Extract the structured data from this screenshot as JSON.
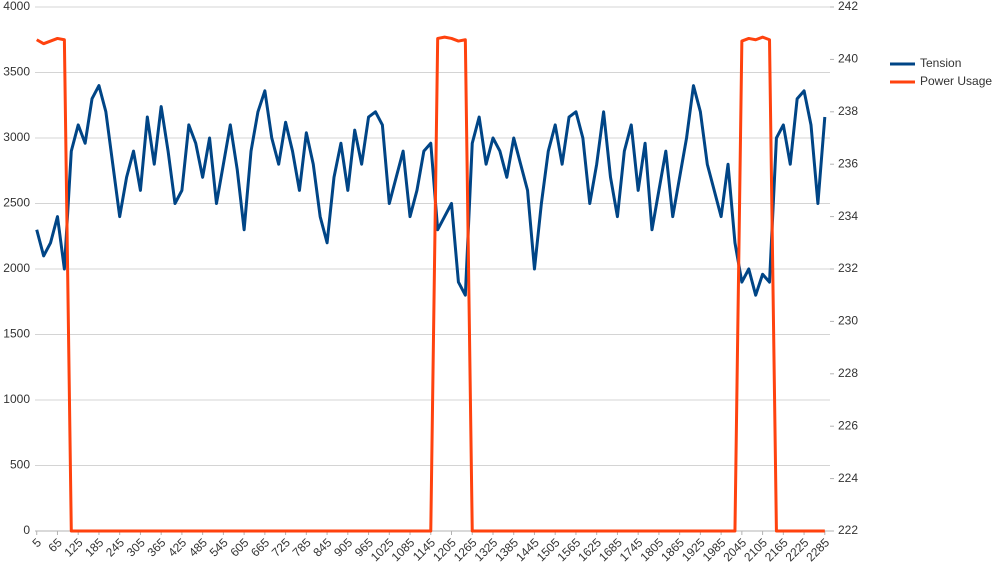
{
  "chart_data": {
    "type": "line",
    "x": [
      5,
      25,
      45,
      65,
      85,
      105,
      125,
      145,
      165,
      185,
      205,
      225,
      245,
      265,
      285,
      305,
      325,
      345,
      365,
      385,
      405,
      425,
      445,
      465,
      485,
      505,
      525,
      545,
      565,
      585,
      605,
      625,
      645,
      665,
      685,
      705,
      725,
      745,
      765,
      785,
      805,
      825,
      845,
      865,
      885,
      905,
      925,
      945,
      965,
      985,
      1005,
      1025,
      1045,
      1065,
      1085,
      1105,
      1125,
      1145,
      1165,
      1185,
      1205,
      1225,
      1245,
      1265,
      1285,
      1305,
      1325,
      1345,
      1365,
      1385,
      1405,
      1425,
      1445,
      1465,
      1485,
      1505,
      1525,
      1545,
      1565,
      1585,
      1605,
      1625,
      1645,
      1665,
      1685,
      1705,
      1725,
      1745,
      1765,
      1785,
      1805,
      1825,
      1845,
      1865,
      1885,
      1905,
      1925,
      1945,
      1965,
      1985,
      2005,
      2025,
      2045,
      2065,
      2085,
      2105,
      2125,
      2145,
      2165,
      2185,
      2205,
      2225,
      2245,
      2265,
      2285
    ],
    "series": [
      {
        "name": "Tension",
        "color": "#004586",
        "axis": "y2",
        "values": [
          233.5,
          232.5,
          233.0,
          234.0,
          232.0,
          236.5,
          237.5,
          236.8,
          238.5,
          239.0,
          238.0,
          236.0,
          234.0,
          235.5,
          236.5,
          235.0,
          237.8,
          236.0,
          238.2,
          236.5,
          234.5,
          235.0,
          237.5,
          236.8,
          235.5,
          237.0,
          234.5,
          236.0,
          237.5,
          235.8,
          233.5,
          236.5,
          238.0,
          238.8,
          237.0,
          236.0,
          237.6,
          236.5,
          235.0,
          237.2,
          236.0,
          234.0,
          233.0,
          235.5,
          236.8,
          235.0,
          237.3,
          236.0,
          237.8,
          238.0,
          237.5,
          234.5,
          235.5,
          236.5,
          234.0,
          235.0,
          236.5,
          236.8,
          233.5,
          234.0,
          234.5,
          231.5,
          231.0,
          236.8,
          237.8,
          236.0,
          237.0,
          236.5,
          235.5,
          237.0,
          236.0,
          235.0,
          232.0,
          234.5,
          236.5,
          237.5,
          236.0,
          237.8,
          238.0,
          237.0,
          234.5,
          236.0,
          238.0,
          235.5,
          234.0,
          236.5,
          237.5,
          235.0,
          236.8,
          233.5,
          235.0,
          236.5,
          234.0,
          235.5,
          237.0,
          239.0,
          238.0,
          236.0,
          235.0,
          234.0,
          236.0,
          233.0,
          231.5,
          232.0,
          231.0,
          231.8,
          231.5,
          237.0,
          237.5,
          236.0,
          238.5,
          238.8,
          237.5,
          234.5,
          237.8
        ]
      },
      {
        "name": "Power Usage",
        "color": "#ff420e",
        "values": [
          3750,
          3720,
          3740,
          3760,
          3750,
          0,
          0,
          0,
          0,
          0,
          0,
          0,
          0,
          0,
          0,
          0,
          0,
          0,
          0,
          0,
          0,
          0,
          0,
          0,
          0,
          0,
          0,
          0,
          0,
          0,
          0,
          0,
          0,
          0,
          0,
          0,
          0,
          0,
          0,
          0,
          0,
          0,
          0,
          0,
          0,
          0,
          0,
          0,
          0,
          0,
          0,
          0,
          0,
          0,
          0,
          0,
          0,
          0,
          3760,
          3770,
          3760,
          3740,
          3750,
          0,
          0,
          0,
          0,
          0,
          0,
          0,
          0,
          0,
          0,
          0,
          0,
          0,
          0,
          0,
          0,
          0,
          0,
          0,
          0,
          0,
          0,
          0,
          0,
          0,
          0,
          0,
          0,
          0,
          0,
          0,
          0,
          0,
          0,
          0,
          0,
          0,
          0,
          0,
          3740,
          3760,
          3750,
          3770,
          3750,
          0,
          0,
          0,
          0,
          0,
          0,
          0,
          0
        ]
      }
    ],
    "xlim": [
      0,
      2300
    ],
    "xticks": [
      5,
      65,
      125,
      185,
      245,
      305,
      365,
      425,
      485,
      545,
      605,
      665,
      725,
      785,
      845,
      905,
      965,
      1025,
      1085,
      1145,
      1205,
      1265,
      1325,
      1385,
      1445,
      1505,
      1565,
      1625,
      1685,
      1745,
      1805,
      1865,
      1925,
      1985,
      2045,
      2105,
      2165,
      2225,
      2285
    ],
    "ylim": [
      0,
      4000
    ],
    "yticks": [
      0,
      500,
      1000,
      1500,
      2000,
      2500,
      3000,
      3500,
      4000
    ],
    "y2lim": [
      222,
      242
    ],
    "y2ticks": [
      222,
      224,
      226,
      228,
      230,
      232,
      234,
      236,
      238,
      240,
      242
    ],
    "grid": true,
    "legend": "right"
  }
}
